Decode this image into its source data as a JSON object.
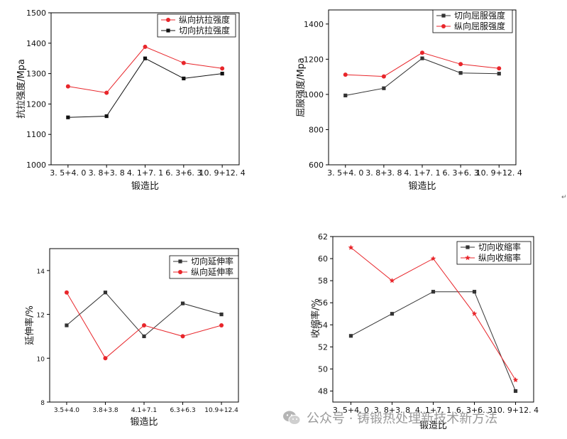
{
  "watermark": {
    "text": "公众号 · 铸锻热处理新技术新方法",
    "icon": "wechat-icon"
  },
  "return_mark": "↵",
  "colors": {
    "black_series": "#333333",
    "red_series": "#e8262b"
  },
  "chart_data": [
    {
      "type": "line",
      "id": "tensile",
      "title": "",
      "xlabel": "锻造比",
      "ylabel": "抗拉强度/Mpa",
      "categories": [
        "3.5+4.0",
        "3.8+3.8",
        "4.1+7.1",
        "6.3+6.3",
        "10.9+12.4"
      ],
      "ylim": [
        1000,
        1500
      ],
      "yticks": [
        "1000",
        "1100",
        "1200",
        "1300",
        "1400",
        "1500"
      ],
      "series": [
        {
          "name": "纵向抗拉强度",
          "color": "#e8262b",
          "marker": "circle",
          "values": [
            1258,
            1237,
            1388,
            1335,
            1317
          ]
        },
        {
          "name": "切向抗拉强度",
          "color": "#111111",
          "marker": "square",
          "values": [
            1156,
            1160,
            1350,
            1284,
            1300
          ]
        }
      ]
    },
    {
      "type": "line",
      "id": "yield",
      "title": "",
      "xlabel": "锻造比",
      "ylabel": "屈服强度/Mpa",
      "categories": [
        "3.5+4.0",
        "3.8+3.8",
        "4.1+7.1",
        "6.3+6.3",
        "10.9+12.4"
      ],
      "ylim": [
        600,
        1480
      ],
      "yticks": [
        "600",
        "800",
        "1000",
        "1200",
        "1400"
      ],
      "series": [
        {
          "name": "切向屈服强度",
          "color": "#333333",
          "marker": "square",
          "values": [
            994,
            1035,
            1205,
            1122,
            1118
          ]
        },
        {
          "name": "纵向屈服强度",
          "color": "#e8262b",
          "marker": "circle",
          "values": [
            1112,
            1102,
            1237,
            1172,
            1148
          ]
        }
      ]
    },
    {
      "type": "line",
      "id": "elongation",
      "title": "",
      "xlabel": "锻造比",
      "ylabel": "延伸率/%",
      "categories": [
        "3.5+4.0",
        "3.8+3.8",
        "4.1+7.1",
        "6.3+6.3",
        "10.9+12.4"
      ],
      "ylim": [
        8,
        15
      ],
      "yticks": [
        "8",
        "10",
        "12",
        "14"
      ],
      "series": [
        {
          "name": "切向延伸率",
          "color": "#333333",
          "marker": "square",
          "values": [
            11.5,
            13.0,
            11.0,
            12.5,
            12.0
          ]
        },
        {
          "name": "纵向延伸率",
          "color": "#e8262b",
          "marker": "circle",
          "values": [
            13.0,
            10.0,
            11.5,
            11.0,
            11.5
          ]
        }
      ]
    },
    {
      "type": "line",
      "id": "reduction",
      "title": "",
      "xlabel": "锻造比",
      "ylabel": "收缩率/%",
      "categories": [
        "3.5+4.0",
        "3.8+3.8",
        "4.1+7.1",
        "6.3+6.3",
        "10.9+12.4"
      ],
      "ylim": [
        47,
        62
      ],
      "yticks": [
        "48",
        "50",
        "52",
        "54",
        "56",
        "58",
        "60",
        "62"
      ],
      "series": [
        {
          "name": "切向收缩率",
          "color": "#333333",
          "marker": "square",
          "values": [
            53,
            55,
            57,
            57,
            48
          ]
        },
        {
          "name": "纵向收缩率",
          "color": "#e8262b",
          "marker": "star",
          "values": [
            61,
            58,
            60,
            55,
            49
          ]
        }
      ]
    }
  ]
}
